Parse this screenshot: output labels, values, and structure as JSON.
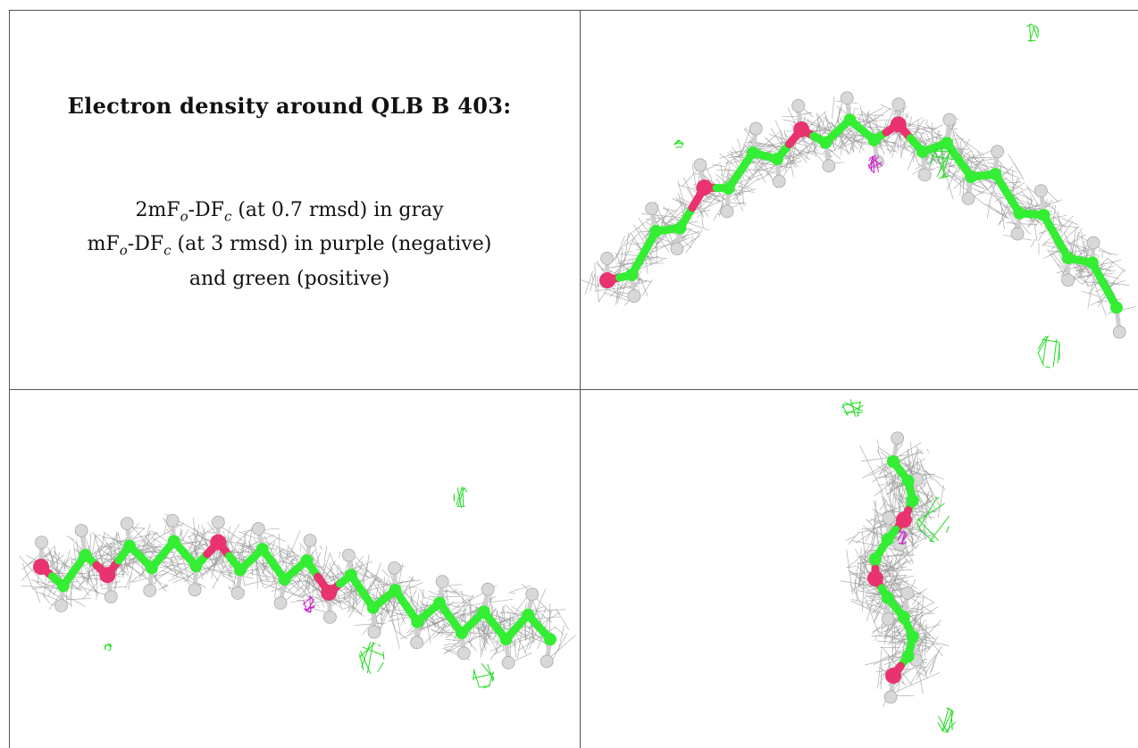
{
  "caption": {
    "title": "Electron density around QLB B 403:",
    "line1": {
      "prefix": "2mF",
      "sub1": "o",
      "mid": "-DF",
      "sub2": "c",
      "suffix": " (at 0.7 rmsd) in gray"
    },
    "line2": {
      "prefix": "mF",
      "sub1": "o",
      "mid": "-DF",
      "sub2": "c",
      "suffix": " (at 3 rmsd) in purple (negative)"
    },
    "line3": "and green (positive)"
  },
  "colors": {
    "carbon": "#33ee33",
    "oxygen": "#e8336e",
    "hydrogen": "#d8d8d8",
    "mesh_gray": "#9a9a9a",
    "mesh_green": "#22dd22",
    "mesh_purple": "#cc22cc"
  },
  "panels": [
    {
      "name": "view-top-right",
      "label": ""
    },
    {
      "name": "view-bottom-left",
      "label": ""
    },
    {
      "name": "view-bottom-right",
      "label": ""
    }
  ]
}
